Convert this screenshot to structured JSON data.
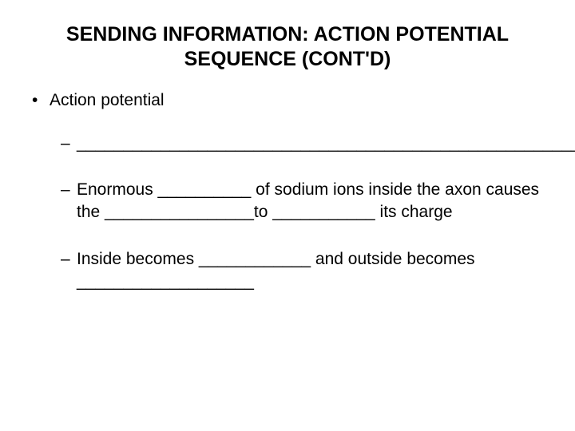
{
  "slide": {
    "title_line1": "SENDING INFORMATION: ACTION POTENTIAL",
    "title_line2": "SEQUENCE (CONT'D)",
    "bullet1": "Action potential",
    "sub1": "______________________________________________________________________________________________________________________________",
    "sub2": "Enormous __________ of sodium ions inside the axon causes the ________________to ___________ its charge",
    "sub3": "Inside becomes ____________ and outside becomes ___________________"
  },
  "style": {
    "background_color": "#ffffff",
    "text_color": "#000000",
    "title_fontsize": 25,
    "body_fontsize": 21,
    "font_family": "Arial"
  }
}
